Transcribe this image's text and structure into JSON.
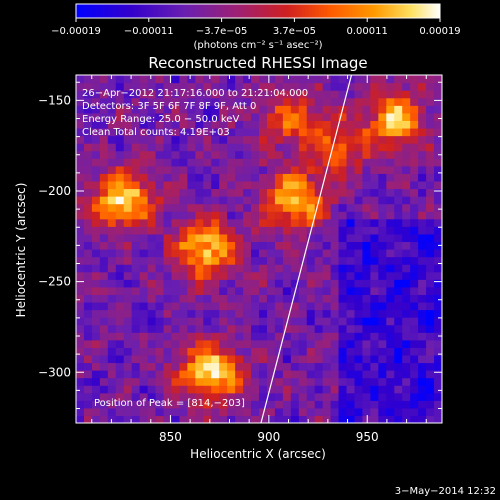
{
  "chart_data": {
    "type": "heatmap",
    "title": "Reconstructed RHESSI Image",
    "xlabel": "Heliocentric X (arcsec)",
    "ylabel": "Heliocentric Y (arcsec)",
    "xlim": [
      802,
      988
    ],
    "ylim": [
      -328,
      -136
    ],
    "xticks": [
      850,
      900,
      950
    ],
    "yticks": [
      -150,
      -200,
      -250,
      -300
    ],
    "xtick_labels": [
      "850",
      "900",
      "950"
    ],
    "ytick_labels": [
      "−150",
      "−200",
      "−250",
      "−300"
    ],
    "colorbar": {
      "ticks": [
        "−0.00019",
        "−0.00011",
        "−3.7e−05",
        "3.7e−05",
        "0.00011",
        "0.00019"
      ],
      "units": "(photons cm⁻² s⁻¹ asec⁻²)",
      "range": [
        -0.00019,
        0.00019
      ],
      "colors": [
        "#0000ff",
        "#3300cc",
        "#6a1fb0",
        "#a02070",
        "#d02020",
        "#ff5a00",
        "#ff9a00",
        "#ffe060",
        "#ffffff"
      ]
    },
    "annotations": {
      "line1": "26−Apr−2012 21:17:16.000 to 21:21:04.000",
      "line2": "Detectors: 3F 5F 6F 7F 8F 9F, Att 0",
      "line3": "Energy Range: 25.0 − 50.0 keV",
      "line4": "Clean     Total counts: 4.19E+03",
      "peak": "Position of Peak = [814,−203]"
    },
    "limb_line": {
      "x": [
        896,
        942
      ],
      "y": [
        -328,
        -136
      ]
    },
    "peak_position": [
      814,
      -203
    ],
    "hot_spots": [
      {
        "x": 826,
        "y": -205,
        "intensity": 1.0
      },
      {
        "x": 868,
        "y": -232,
        "intensity": 0.95
      },
      {
        "x": 870,
        "y": -300,
        "intensity": 1.0
      },
      {
        "x": 913,
        "y": -205,
        "intensity": 0.9
      },
      {
        "x": 935,
        "y": -175,
        "intensity": 0.6
      },
      {
        "x": 965,
        "y": -160,
        "intensity": 0.85
      },
      {
        "x": 910,
        "y": -160,
        "intensity": 0.55
      }
    ]
  },
  "footer": {
    "date": "3−May−2014 12:32"
  }
}
